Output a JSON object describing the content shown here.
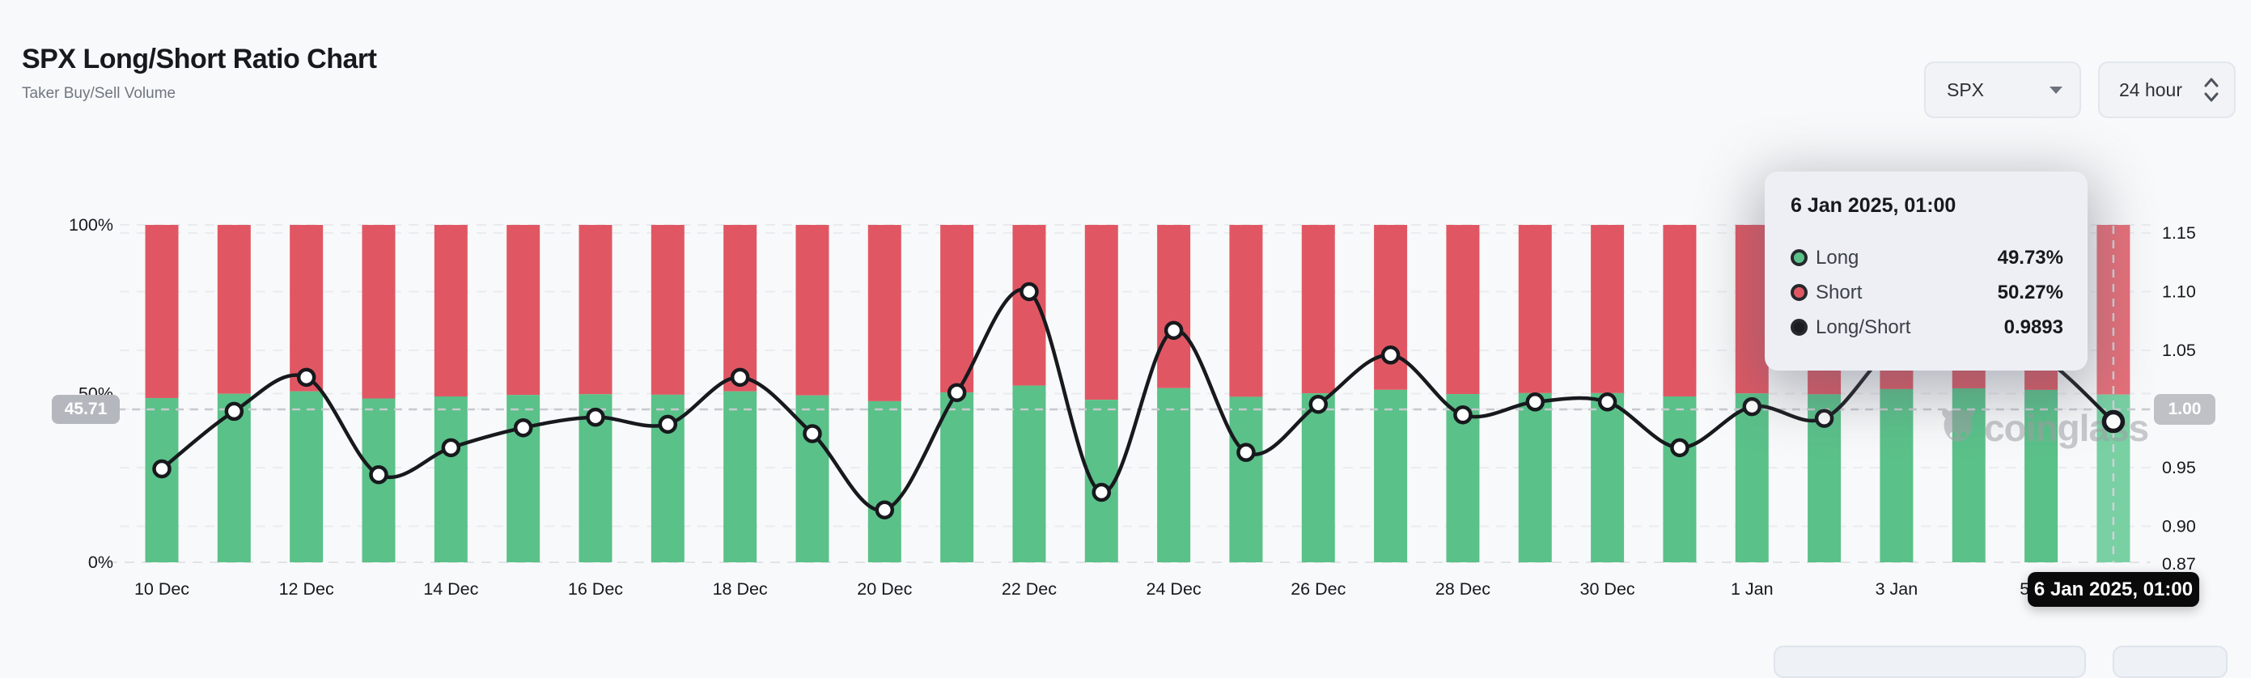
{
  "header": {
    "title": "SPX Long/Short Ratio Chart",
    "subtitle": "Taker Buy/Sell Volume"
  },
  "controls": {
    "symbol": {
      "value": "SPX"
    },
    "interval": {
      "value": "24 hour"
    }
  },
  "tooltip": {
    "title": "6 Jan 2025, 01:00",
    "rows": [
      {
        "label": "Long",
        "value": "49.73%",
        "color": "#5ac189"
      },
      {
        "label": "Short",
        "value": "50.27%",
        "color": "#e05763"
      },
      {
        "label": "Long/Short",
        "value": "0.9893",
        "color": "#1a1c20"
      }
    ]
  },
  "crosshair": {
    "left_badge": "45.71",
    "right_badge": "1.00",
    "axis_pill": "6 Jan 2025, 01:00"
  },
  "watermark": {
    "text": "coinglass"
  },
  "chart_data": {
    "type": "bar",
    "subtype": "stacked-percent-bars-with-ratio-line",
    "categories": [
      "10 Dec",
      "11 Dec",
      "12 Dec",
      "13 Dec",
      "14 Dec",
      "15 Dec",
      "16 Dec",
      "17 Dec",
      "18 Dec",
      "19 Dec",
      "20 Dec",
      "21 Dec",
      "22 Dec",
      "23 Dec",
      "24 Dec",
      "25 Dec",
      "26 Dec",
      "27 Dec",
      "28 Dec",
      "29 Dec",
      "30 Dec",
      "31 Dec",
      "1 Jan",
      "2 Jan",
      "3 Jan",
      "4 Jan",
      "5 Jan",
      "6 Jan"
    ],
    "x_tick_indices": [
      0,
      2,
      4,
      6,
      8,
      10,
      12,
      14,
      16,
      18,
      20,
      22,
      24,
      26
    ],
    "x_tick_labels": [
      "10 Dec",
      "12 Dec",
      "14 Dec",
      "16 Dec",
      "18 Dec",
      "20 Dec",
      "22 Dec",
      "24 Dec",
      "26 Dec",
      "28 Dec",
      "30 Dec",
      "1 Jan",
      "3 Jan",
      "5 Jan"
    ],
    "series": [
      {
        "name": "Long",
        "type": "bar-stack-bottom",
        "unit": "%",
        "color": "#5ac189",
        "hover_color": "#78d0a3",
        "values": [
          48.69,
          49.95,
          50.67,
          48.56,
          49.16,
          49.6,
          49.82,
          49.67,
          50.67,
          49.47,
          47.75,
          50.35,
          52.38,
          48.16,
          51.62,
          49.06,
          50.1,
          51.12,
          49.87,
          50.15,
          50.15,
          49.16,
          50.05,
          49.8,
          51.34,
          51.57,
          51.1,
          49.73
        ]
      },
      {
        "name": "Short",
        "type": "bar-stack-top",
        "unit": "%",
        "color": "#e05763",
        "hover_color": "#e66f79",
        "note": "short = 100 - long",
        "values": [
          51.31,
          50.05,
          49.33,
          51.44,
          50.84,
          50.4,
          50.18,
          50.33,
          49.33,
          50.53,
          52.25,
          49.65,
          47.62,
          51.84,
          48.38,
          50.94,
          49.9,
          48.88,
          50.13,
          49.85,
          49.85,
          50.84,
          49.95,
          50.2,
          48.66,
          48.43,
          48.9,
          50.27
        ]
      },
      {
        "name": "Long/Short",
        "type": "line",
        "axis": "right",
        "color": "#17191d",
        "values": [
          0.949,
          0.998,
          1.027,
          0.944,
          0.967,
          0.984,
          0.993,
          0.987,
          1.027,
          0.979,
          0.914,
          1.014,
          1.1,
          0.929,
          1.067,
          0.963,
          1.004,
          1.046,
          0.995,
          1.006,
          1.006,
          0.967,
          1.002,
          0.992,
          1.055,
          1.065,
          1.045,
          0.9893
        ]
      }
    ],
    "left_axis": {
      "tick_labels": [
        "100%",
        "50%",
        "0%"
      ],
      "tick_values": [
        100,
        50,
        0
      ],
      "range": [
        0,
        100
      ]
    },
    "right_axis": {
      "tick_labels": [
        "1.15",
        "1.10",
        "1.05",
        "1.00",
        "0.95",
        "0.90",
        "0.87"
      ],
      "tick_values": [
        1.15,
        1.1,
        1.05,
        1.0,
        0.95,
        0.9,
        0.87
      ],
      "range": [
        0.87,
        1.158
      ]
    },
    "grid": true,
    "legend_position": "tooltip-only",
    "hover_index": 27,
    "hover_crosshair": {
      "left_axis_value": "45.71",
      "right_axis_value": "1.00",
      "x_value": "6 Jan 2025, 01:00"
    }
  }
}
